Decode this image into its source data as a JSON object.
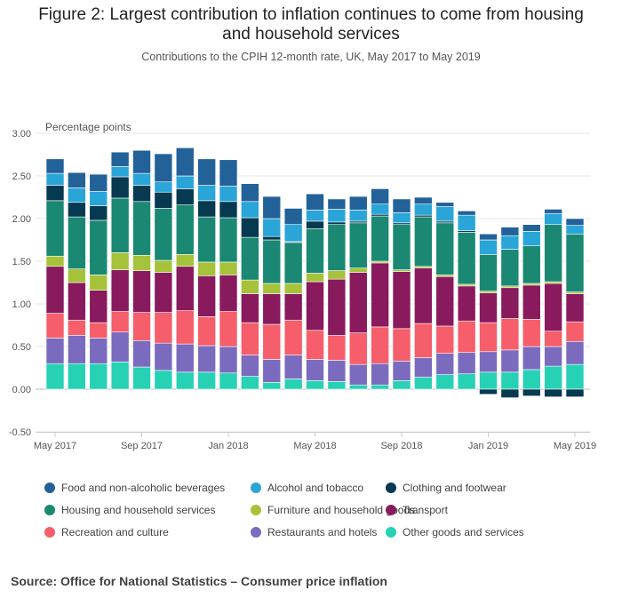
{
  "chart_data": {
    "type": "bar",
    "stacked": true,
    "title_line1": "Figure 2: Largest contribution to inflation continues to come from housing",
    "title_line2": "and household services",
    "subtitle": "Contributions to the CPIH 12-month rate, UK, May 2017 to May 2019",
    "ylabel": "Percentage points",
    "ylim": [
      -0.5,
      3.0
    ],
    "yticks": [
      "3.00",
      "2.50",
      "2.00",
      "1.50",
      "1.00",
      "0.50",
      "0.00",
      "-0.50"
    ],
    "ytick_values": [
      3.0,
      2.5,
      2.0,
      1.5,
      1.0,
      0.5,
      0.0,
      -0.5
    ],
    "xtick_labels": [
      {
        "label": "May 2017",
        "index": 0
      },
      {
        "label": "Sep 2017",
        "index": 4
      },
      {
        "label": "Jan 2018",
        "index": 8
      },
      {
        "label": "May 2018",
        "index": 12
      },
      {
        "label": "Sep 2018",
        "index": 16
      },
      {
        "label": "Jan 2019",
        "index": 20
      },
      {
        "label": "May 2019",
        "index": 24
      }
    ],
    "categories": [
      "May 2017",
      "Jun 2017",
      "Jul 2017",
      "Aug 2017",
      "Sep 2017",
      "Oct 2017",
      "Nov 2017",
      "Dec 2017",
      "Jan 2018",
      "Feb 2018",
      "Mar 2018",
      "Apr 2018",
      "May 2018",
      "Jun 2018",
      "Jul 2018",
      "Aug 2018",
      "Sep 2018",
      "Oct 2018",
      "Nov 2018",
      "Dec 2018",
      "Jan 2019",
      "Feb 2019",
      "Mar 2019",
      "Apr 2019",
      "May 2019"
    ],
    "series": [
      {
        "name": "Other goods and services",
        "color": "#27d1b4",
        "values": [
          0.3,
          0.3,
          0.3,
          0.32,
          0.26,
          0.22,
          0.2,
          0.2,
          0.19,
          0.15,
          0.08,
          0.12,
          0.1,
          0.09,
          0.05,
          0.05,
          0.1,
          0.14,
          0.17,
          0.18,
          0.2,
          0.2,
          0.23,
          0.27,
          0.29
        ]
      },
      {
        "name": "Restaurants and hotels",
        "color": "#7b6bbe",
        "values": [
          0.3,
          0.33,
          0.3,
          0.35,
          0.31,
          0.32,
          0.33,
          0.31,
          0.31,
          0.25,
          0.27,
          0.28,
          0.25,
          0.25,
          0.24,
          0.25,
          0.23,
          0.23,
          0.25,
          0.25,
          0.24,
          0.26,
          0.27,
          0.23,
          0.27
        ]
      },
      {
        "name": "Recreation and culture",
        "color": "#f55e6a",
        "values": [
          0.29,
          0.18,
          0.18,
          0.24,
          0.33,
          0.36,
          0.39,
          0.34,
          0.41,
          0.38,
          0.41,
          0.41,
          0.34,
          0.29,
          0.37,
          0.43,
          0.38,
          0.4,
          0.32,
          0.37,
          0.34,
          0.37,
          0.32,
          0.18,
          0.23
        ]
      },
      {
        "name": "Transport",
        "color": "#881a5d",
        "values": [
          0.55,
          0.44,
          0.38,
          0.49,
          0.49,
          0.47,
          0.52,
          0.48,
          0.43,
          0.34,
          0.36,
          0.31,
          0.57,
          0.66,
          0.71,
          0.75,
          0.67,
          0.65,
          0.58,
          0.41,
          0.35,
          0.36,
          0.4,
          0.56,
          0.33
        ]
      },
      {
        "name": "Furniture and household goods",
        "color": "#a6c23a",
        "values": [
          0.12,
          0.16,
          0.18,
          0.2,
          0.18,
          0.14,
          0.14,
          0.16,
          0.15,
          0.16,
          0.12,
          0.12,
          0.1,
          0.1,
          0.05,
          0.02,
          0.02,
          0.02,
          0.02,
          0.02,
          0.02,
          0.02,
          0.02,
          0.02,
          0.02
        ]
      },
      {
        "name": "Housing and household services",
        "color": "#1a8872",
        "values": [
          0.65,
          0.61,
          0.64,
          0.64,
          0.63,
          0.61,
          0.58,
          0.53,
          0.52,
          0.5,
          0.51,
          0.48,
          0.52,
          0.54,
          0.53,
          0.53,
          0.53,
          0.58,
          0.61,
          0.61,
          0.43,
          0.43,
          0.44,
          0.67,
          0.68
        ]
      },
      {
        "name": "Clothing and footwear",
        "color": "#073a50",
        "values": [
          0.18,
          0.17,
          0.17,
          0.25,
          0.19,
          0.19,
          0.19,
          0.19,
          0.19,
          0.23,
          0.04,
          0.01,
          0.09,
          0.03,
          0.02,
          0.02,
          0.02,
          0.02,
          0.02,
          0.02,
          -0.06,
          -0.1,
          -0.08,
          -0.09,
          -0.09
        ]
      },
      {
        "name": "Alcohol and tobacco",
        "color": "#2aa5d8",
        "values": [
          0.14,
          0.17,
          0.17,
          0.12,
          0.14,
          0.12,
          0.15,
          0.18,
          0.18,
          0.19,
          0.21,
          0.2,
          0.13,
          0.15,
          0.13,
          0.12,
          0.12,
          0.13,
          0.17,
          0.18,
          0.17,
          0.16,
          0.17,
          0.13,
          0.1
        ]
      },
      {
        "name": "Food and non-alcoholic beverages",
        "color": "#236299",
        "values": [
          0.17,
          0.18,
          0.2,
          0.17,
          0.27,
          0.33,
          0.33,
          0.31,
          0.31,
          0.21,
          0.26,
          0.19,
          0.19,
          0.12,
          0.16,
          0.18,
          0.16,
          0.08,
          0.05,
          0.05,
          0.07,
          0.1,
          0.08,
          0.05,
          0.08
        ]
      }
    ],
    "legend": [
      {
        "label": "Food and non-alcoholic beverages",
        "color": "#236299"
      },
      {
        "label": "Alcohol and tobacco",
        "color": "#2aa5d8"
      },
      {
        "label": "Clothing and footwear",
        "color": "#073a50"
      },
      {
        "label": "Housing and household services",
        "color": "#1a8872"
      },
      {
        "label": "Furniture and household goods",
        "color": "#a6c23a"
      },
      {
        "label": "Transport",
        "color": "#881a5d"
      },
      {
        "label": "Recreation and culture",
        "color": "#f55e6a"
      },
      {
        "label": "Restaurants and hotels",
        "color": "#7b6bbe"
      },
      {
        "label": "Other goods and services",
        "color": "#27d1b4"
      }
    ],
    "legend_position": "bottom",
    "grid": true,
    "source": "Source: Office for National Statistics – Consumer price inflation"
  }
}
